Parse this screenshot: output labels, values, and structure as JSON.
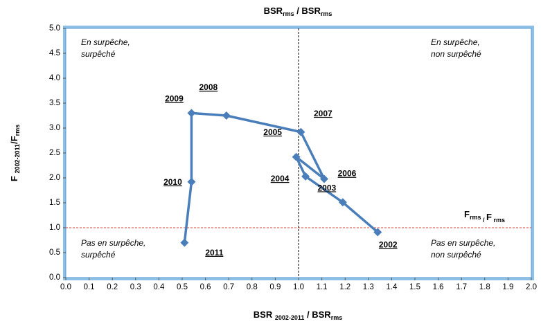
{
  "chart_data": {
    "type": "line",
    "top_label": {
      "parts": [
        "BSR",
        "rms",
        "  /  BSR",
        "rms"
      ],
      "sub": [
        false,
        true,
        false,
        true
      ]
    },
    "x_label": {
      "parts": [
        "BSR ",
        "2002-2011",
        "  /  BSR",
        "rms"
      ],
      "sub": [
        false,
        true,
        false,
        true
      ]
    },
    "y_label": {
      "parts": [
        "F ",
        "2002-2011",
        "/F",
        "rms"
      ],
      "sub": [
        false,
        true,
        false,
        true
      ]
    },
    "hline_label": {
      "parts": [
        "F",
        "rms",
        " / ",
        "F",
        " rms"
      ],
      "sub": [
        false,
        true,
        true,
        false,
        true
      ]
    },
    "hline": 1,
    "hline_color": "#e03c31",
    "vline": 1,
    "vline_color": "#000000",
    "quadrant_texts": [
      [
        "En surpêche,",
        "surpêché"
      ],
      [
        "En surpêche,",
        "non surpêché"
      ],
      [
        "Pas en surpêche,",
        "surpêché"
      ],
      [
        "Pas en surpêche,",
        "non surpêché"
      ]
    ],
    "series": [
      {
        "color": "#4a7ebb",
        "x": [
          1.34,
          1.19,
          1.03,
          0.99,
          1.11,
          1.01,
          0.69,
          0.54,
          0.54,
          0.51
        ],
        "y": [
          0.91,
          1.51,
          2.03,
          2.42,
          1.98,
          2.92,
          3.25,
          3.3,
          1.92,
          0.7
        ],
        "point_labels": [
          "2002",
          "2003",
          "2004",
          "2005",
          "2006",
          "2007",
          "2008",
          "2009",
          "2010",
          "2011"
        ]
      }
    ],
    "xlim": [
      0,
      2
    ],
    "ylim": [
      0,
      5
    ],
    "xticks": [
      {
        "value": 0,
        "label": "0.0"
      },
      0.1,
      0.2,
      0.3,
      0.4,
      0.5,
      0.6,
      0.7,
      0.8,
      0.9,
      {
        "value": 1,
        "label": "1.0"
      },
      1.1,
      1.2,
      1.3,
      1.4,
      1.5,
      1.6,
      1.7,
      1.8,
      1.9,
      {
        "value": 2,
        "label": "2.0"
      }
    ],
    "yticks": [
      {
        "value": 0,
        "label": "0.0"
      },
      0.5,
      {
        "value": 1,
        "label": "1.0"
      },
      1.5,
      {
        "value": 2,
        "label": "2.0"
      },
      2.5,
      {
        "value": 3,
        "label": "3.0"
      },
      3.5,
      {
        "value": 4,
        "label": "4.0"
      },
      4.5,
      {
        "value": 5,
        "label": "5.0"
      }
    ]
  }
}
